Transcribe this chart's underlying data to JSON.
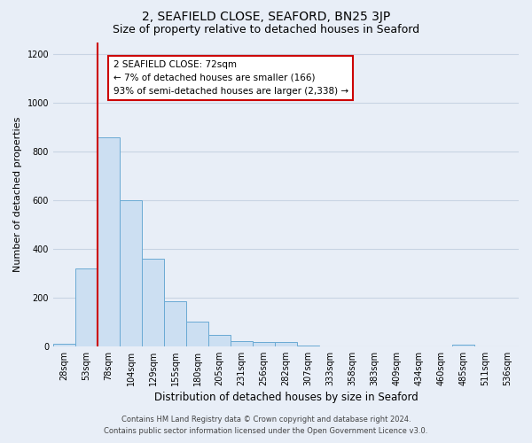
{
  "title": "2, SEAFIELD CLOSE, SEAFORD, BN25 3JP",
  "subtitle": "Size of property relative to detached houses in Seaford",
  "xlabel": "Distribution of detached houses by size in Seaford",
  "ylabel": "Number of detached properties",
  "bar_labels": [
    "28sqm",
    "53sqm",
    "78sqm",
    "104sqm",
    "129sqm",
    "155sqm",
    "180sqm",
    "205sqm",
    "231sqm",
    "256sqm",
    "282sqm",
    "307sqm",
    "333sqm",
    "358sqm",
    "383sqm",
    "409sqm",
    "434sqm",
    "460sqm",
    "485sqm",
    "511sqm",
    "536sqm"
  ],
  "bar_heights": [
    10,
    320,
    860,
    600,
    360,
    185,
    100,
    45,
    20,
    18,
    18,
    3,
    0,
    0,
    0,
    0,
    0,
    0,
    5,
    0,
    0
  ],
  "bar_color": "#ccdff2",
  "bar_edge_color": "#6aaad4",
  "vline_color": "#cc0000",
  "ylim": [
    0,
    1250
  ],
  "yticks": [
    0,
    200,
    400,
    600,
    800,
    1000,
    1200
  ],
  "annotation_title": "2 SEAFIELD CLOSE: 72sqm",
  "annotation_line1": "← 7% of detached houses are smaller (166)",
  "annotation_line2": "93% of semi-detached houses are larger (2,338) →",
  "footer1": "Contains HM Land Registry data © Crown copyright and database right 2024.",
  "footer2": "Contains public sector information licensed under the Open Government Licence v3.0.",
  "bg_color": "#e8eef7",
  "plot_bg_color": "#e8eef7",
  "grid_color": "#c8d4e4",
  "title_fontsize": 10,
  "subtitle_fontsize": 9
}
